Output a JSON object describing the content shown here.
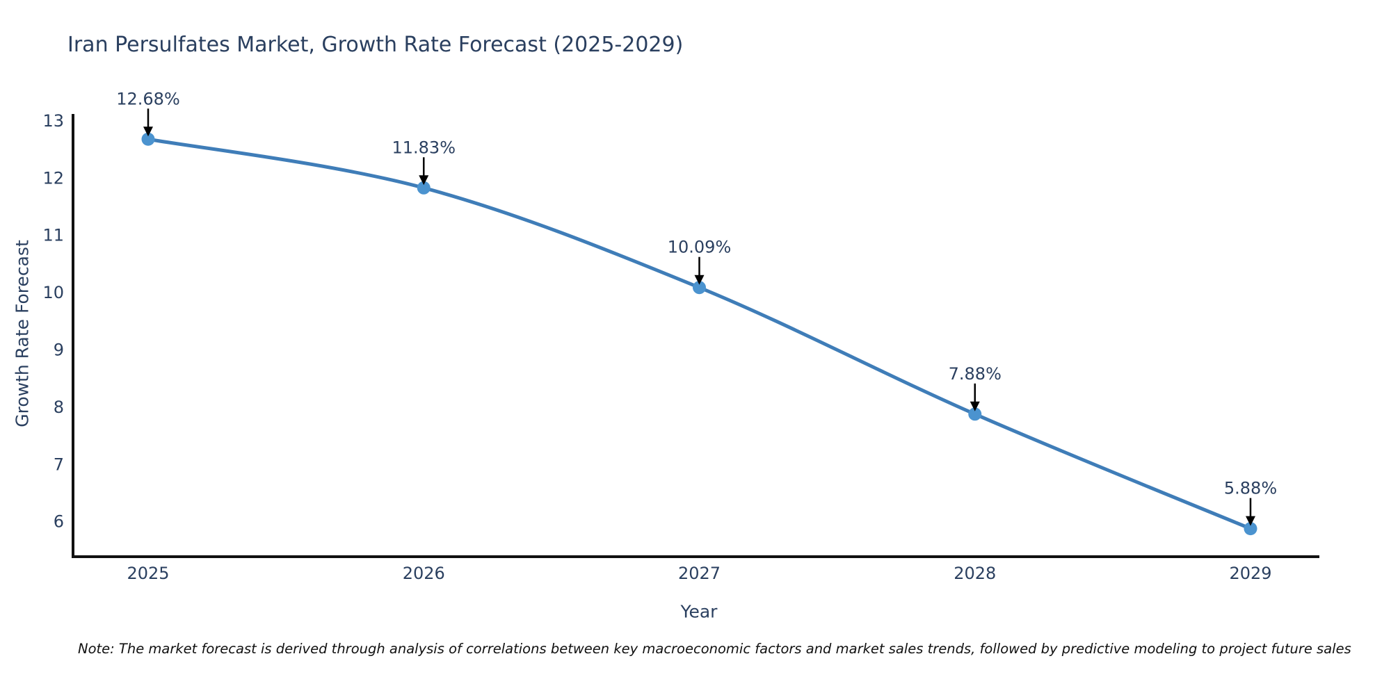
{
  "header": {
    "title": "Iran Persulfates Market, Growth Rate Forecast (2025-2029)"
  },
  "footnote": {
    "text": "Note: The market forecast is derived through analysis of correlations between key macroeconomic factors and market sales trends, followed by predictive modeling to project future sales"
  },
  "chart_data": {
    "type": "line",
    "title": "Iran Persulfates Market, Growth Rate Forecast (2025-2029)",
    "categories": [
      "2025",
      "2026",
      "2027",
      "2028",
      "2029"
    ],
    "values": [
      12.68,
      11.83,
      10.09,
      7.88,
      5.88
    ],
    "point_labels": [
      "12.68%",
      "11.83%",
      "10.09%",
      "7.88%",
      "5.88%"
    ],
    "xlabel": "Year",
    "ylabel": "Growth Rate Forecast",
    "ylim": [
      5.39,
      13.12
    ],
    "yticks": [
      6,
      7,
      8,
      9,
      10,
      11,
      12,
      13
    ],
    "grid": false,
    "legend": "none",
    "line_shape": "spline",
    "marker": "circle",
    "annotation_style": "value label with downward black arrow above each point",
    "colors": {
      "line": "#3f7db8",
      "marker": "#4b93cf",
      "text": "#2a3f5f",
      "axis_line": "#111111",
      "annotation_arrow": "#000000",
      "note_text": "#111111",
      "background": "#ffffff"
    }
  }
}
